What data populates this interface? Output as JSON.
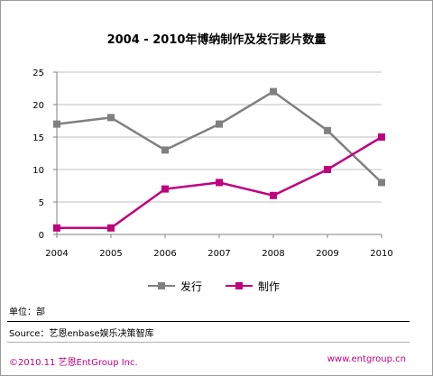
{
  "chart_data": {
    "type": "line",
    "title": "2004 - 2010年博纳制作及发行影片数量",
    "x": [
      "2004",
      "2005",
      "2006",
      "2007",
      "2008",
      "2009",
      "2010"
    ],
    "ylim": [
      0,
      25
    ],
    "yticks": [
      0,
      5,
      10,
      15,
      20,
      25
    ],
    "grid": true,
    "legend": "bottom",
    "series": [
      {
        "name": "发行",
        "values": [
          17,
          18,
          13,
          17,
          22,
          16,
          8
        ],
        "color": "#808080"
      },
      {
        "name": "制作",
        "values": [
          1,
          1,
          7,
          8,
          6,
          10,
          15
        ],
        "color": "#c0007f"
      }
    ]
  },
  "notes": {
    "unit": "单位：部",
    "source": "Source：艺恩enbase娱乐决策智库"
  },
  "footer": {
    "copyright": "©2010.11  艺恩EntGroup Inc.",
    "website": "www.entgroup.cn"
  }
}
